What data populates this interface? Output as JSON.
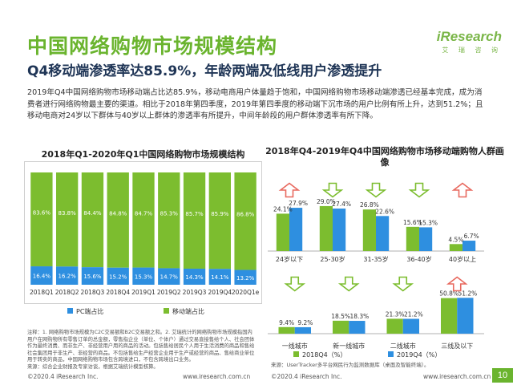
{
  "header": {
    "title": "中国网络购物市场规模结构",
    "subtitle": "Q4移动端渗透率达85.9%，年龄两端及低线用户渗透提升",
    "logo_brand": "iResearch",
    "logo_sub": "艾 瑞 咨 询"
  },
  "description": "2019年Q4中国网络购物市场移动端占比达85.9%，移动电商用户体量趋于饱和，中国网络购物市场移动端渗透已经基本完成，成为消费者进行网络购物最主要的渠道。相比于2018年第四季度，2019年第四季度的移动端下沉市场的用户比例有所上升，达到51.2%；且移动电商对24岁以下群体与40岁以上群体的渗透率有所提升，中间年龄段的用户群体渗透率有所下降。",
  "colors": {
    "pc": "#2e8fe0",
    "mobile": "#7cbd2f",
    "y2018": "#7cbd2f",
    "y2019": "#2e8fe0",
    "arrow_up": "#e8695f",
    "arrow_down": "#7cbd2f",
    "title_green": "#6ab42e"
  },
  "chart_data": [
    {
      "type": "bar",
      "stacked": true,
      "percent": true,
      "title": "2018年Q1-2020年Q1中国网络购物市场规模结构",
      "categories": [
        "2018Q1",
        "2018Q2",
        "2018Q3",
        "2018Q4",
        "2019Q1",
        "2019Q2",
        "2019Q3",
        "2019Q4",
        "2020Q1e"
      ],
      "series": [
        {
          "name": "PC端占比",
          "values": [
            16.4,
            16.2,
            15.6,
            15.2,
            15.3,
            14.7,
            14.3,
            14.1,
            13.2
          ]
        },
        {
          "name": "移动端占比",
          "values": [
            83.6,
            83.8,
            84.4,
            84.8,
            84.7,
            85.3,
            85.7,
            85.9,
            86.8
          ]
        }
      ],
      "labels_pc": [
        "16.4%",
        "16.2%",
        "15.6%",
        "15.2%",
        "15.3%",
        "14.7%",
        "14.3%",
        "14.1%",
        "13.2%"
      ],
      "labels_mobile": [
        "83.6%",
        "83.8%",
        "84.4%",
        "84.8%",
        "84.7%",
        "85.3%",
        "85.7%",
        "85.9%",
        "86.8%"
      ],
      "ylim": [
        0,
        100
      ],
      "legend": "bottom"
    },
    {
      "type": "bar",
      "title": "2018年Q4-2019年Q4中国网络购物市场移动端购物人群画像",
      "panels": [
        {
          "name": "age",
          "categories": [
            "24岁以下",
            "25-30岁",
            "31-35岁",
            "36-40岁",
            "40岁以上"
          ],
          "series": [
            {
              "name": "2018Q4（%）",
              "values": [
                24.1,
                29.0,
                26.8,
                15.6,
                4.5
              ]
            },
            {
              "name": "2019Q4（%）",
              "values": [
                27.9,
                27.4,
                22.6,
                15.3,
                6.7
              ]
            }
          ],
          "labels_2018": [
            "24.1%",
            "29.0%",
            "26.8%",
            "15.6%",
            "4.5%"
          ],
          "labels_2019": [
            "27.9%",
            "27.4%",
            "22.6%",
            "15.3%",
            "6.7%"
          ],
          "trend": [
            "up",
            "down",
            "down",
            "down",
            "up"
          ]
        },
        {
          "name": "city",
          "categories": [
            "一线城市",
            "新一线城市",
            "二线城市",
            "三线及以下"
          ],
          "series": [
            {
              "name": "2018Q4（%）",
              "values": [
                9.4,
                18.5,
                21.3,
                50.8
              ]
            },
            {
              "name": "2019Q4（%）",
              "values": [
                9.2,
                18.3,
                21.2,
                51.2
              ]
            }
          ],
          "labels_2018": [
            "9.4%",
            "18.5%",
            "21.3%",
            "50.8%"
          ],
          "labels_2019": [
            "9.2%",
            "18.3%",
            "21.2%",
            "51.2%"
          ],
          "trend": [
            "down",
            "down",
            "down",
            "up"
          ]
        }
      ],
      "legend": "bottom"
    }
  ],
  "notes": "注释：1. 网络购物市场规模为C2C交易额和B2C交易额之和。2. 艾瑞统计的网络购物市场规模指国内用户在网购物所有零售订单的总金额，零售指企业（单位、个体户）通过交易直接售给个人、社会团体作为最终消费、而非生产、非经营用户用的商品的活动。包括售给居民个人用于生活消费的商品和售给社会集团用于非生产、非经营的商品。不包括售给生产经营企业用于生产或经营的商品、售给商业单位用于转卖的商品，中国网络购物市场包含跨境进口，不包含跨境出口业务。",
  "source": "来源：综合企业财报及专家访谈，根据艾瑞统计模型核算。",
  "ut_source": "来源：UserTracker多平台网民行为监测数据库（桌面及智能终端）。",
  "footer": {
    "left_copyright": "©2020.4 iResearch Inc.",
    "left_url": "www.iresearch.com.cn",
    "right_copyright": "©2020.4 iResearch Inc.",
    "right_url": "www.iresearch.com.cn",
    "page": "10"
  }
}
